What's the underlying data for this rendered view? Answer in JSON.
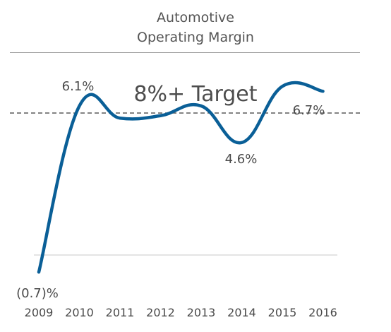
{
  "header": {
    "title_line1": "Automotive",
    "title_line2": "Operating Margin",
    "target_label": "8%+ Target"
  },
  "colors": {
    "line": "#0a5f97",
    "text": "#4a4a4a",
    "dashed_target": "#5a5a5a"
  },
  "chart_data": {
    "type": "line",
    "title": "Automotive Operating Margin",
    "x": [
      "2009",
      "2010",
      "2011",
      "2012",
      "2013",
      "2014",
      "2015",
      "2016"
    ],
    "series": [
      {
        "values": [
          -0.7,
          6.1,
          5.6,
          5.7,
          6.1,
          4.6,
          6.9,
          6.7
        ]
      }
    ],
    "data_labels": [
      {
        "text": "(0.7)%",
        "index": 0
      },
      {
        "text": "6.1%",
        "index": 1
      },
      {
        "text": "4.6%",
        "index": 5
      },
      {
        "text": "6.7%",
        "index": 7
      }
    ],
    "reference_lines": [
      {
        "label": "8%+ Target",
        "value": 8,
        "style": "dashed"
      }
    ],
    "ylim": [
      -1,
      8
    ],
    "grid": false,
    "legend": "none"
  }
}
